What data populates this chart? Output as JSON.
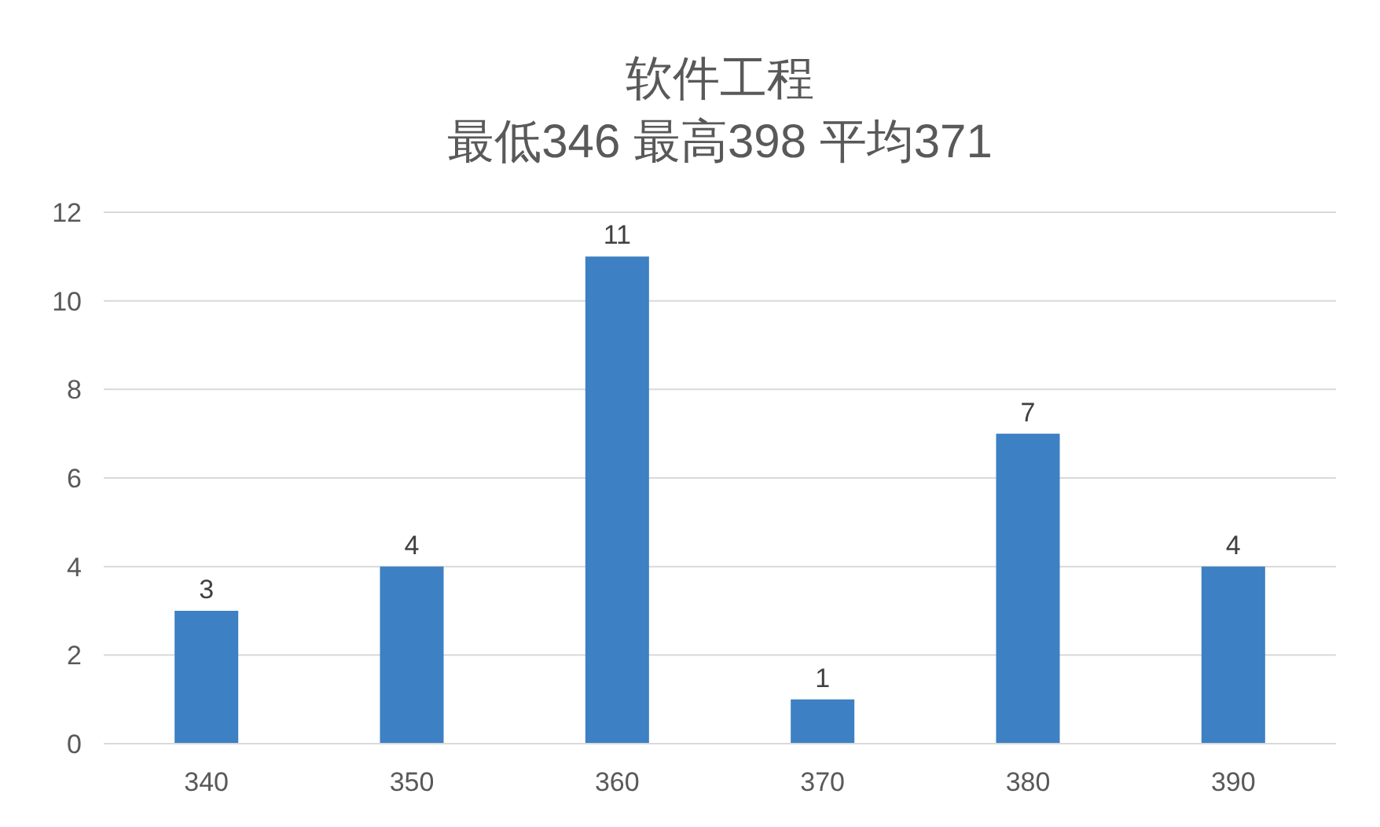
{
  "chart_data": {
    "type": "bar",
    "title": "软件工程",
    "subtitle": "最低346 最高398 平均371",
    "categories": [
      "340",
      "350",
      "360",
      "370",
      "380",
      "390"
    ],
    "values": [
      3,
      4,
      11,
      1,
      7,
      4
    ],
    "color": "#3d80c3",
    "ylim": [
      0,
      12
    ],
    "yticks": [
      0,
      2,
      4,
      6,
      8,
      10,
      12
    ],
    "grid": "y",
    "data_labels": true
  }
}
